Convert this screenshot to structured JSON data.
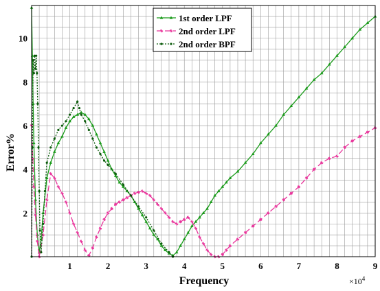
{
  "chart_data": {
    "type": "line",
    "xlabel": "Frequency",
    "ylabel": "Error%",
    "x_multiplier": "×10",
    "x_multiplier_exp": "4",
    "xlim": [
      0,
      9
    ],
    "ylim": [
      0,
      11.5
    ],
    "xticks": [
      1,
      2,
      3,
      4,
      5,
      6,
      7,
      8,
      9
    ],
    "yticks": [
      2,
      4,
      6,
      8,
      10
    ],
    "grid": true,
    "legend_position": "top-center",
    "series": [
      {
        "name": "1st order LPF",
        "color": "#1a9a1a",
        "dash": "none",
        "marker": "triangle",
        "x": [
          0.0,
          0.02,
          0.04,
          0.06,
          0.1,
          0.15,
          0.2,
          0.25,
          0.3,
          0.4,
          0.5,
          0.6,
          0.7,
          0.8,
          0.9,
          1.0,
          1.1,
          1.2,
          1.3,
          1.4,
          1.5,
          1.6,
          1.7,
          1.8,
          1.9,
          2.0,
          2.1,
          2.2,
          2.3,
          2.4,
          2.5,
          2.6,
          2.7,
          2.8,
          2.9,
          3.0,
          3.1,
          3.2,
          3.3,
          3.4,
          3.5,
          3.6,
          3.7,
          3.8,
          3.9,
          4.0,
          4.1,
          4.2,
          4.3,
          4.4,
          4.5,
          4.6,
          4.7,
          4.8,
          4.9,
          5.0,
          5.1,
          5.2,
          5.4,
          5.6,
          5.8,
          6.0,
          6.2,
          6.4,
          6.6,
          6.8,
          7.0,
          7.2,
          7.4,
          7.6,
          7.8,
          8.0,
          8.2,
          8.4,
          8.6,
          8.8,
          9.0
        ],
        "y": [
          11.4,
          9.2,
          7.0,
          5.2,
          2.6,
          1.0,
          0.2,
          0.8,
          2.0,
          3.6,
          4.3,
          4.8,
          5.2,
          5.5,
          5.9,
          6.2,
          6.4,
          6.5,
          6.6,
          6.5,
          6.3,
          6.0,
          5.6,
          5.2,
          4.8,
          4.4,
          4.0,
          3.7,
          3.4,
          3.2,
          3.0,
          2.8,
          2.5,
          2.2,
          1.9,
          1.6,
          1.3,
          1.0,
          0.8,
          0.5,
          0.3,
          0.15,
          0.05,
          0.2,
          0.5,
          0.8,
          1.1,
          1.4,
          1.6,
          1.8,
          2.0,
          2.2,
          2.5,
          2.8,
          3.0,
          3.2,
          3.4,
          3.6,
          3.9,
          4.3,
          4.7,
          5.2,
          5.6,
          6.0,
          6.5,
          6.9,
          7.3,
          7.7,
          8.1,
          8.4,
          8.8,
          9.2,
          9.6,
          10.0,
          10.4,
          10.7,
          11.0
        ]
      },
      {
        "name": "2nd order LPF",
        "color": "#e8339a",
        "dash": "8,4",
        "marker": "star",
        "x": [
          0.0,
          0.03,
          0.06,
          0.1,
          0.15,
          0.2,
          0.3,
          0.4,
          0.5,
          0.6,
          0.7,
          0.8,
          0.9,
          1.0,
          1.1,
          1.2,
          1.3,
          1.4,
          1.5,
          1.6,
          1.7,
          1.8,
          1.9,
          2.0,
          2.1,
          2.2,
          2.3,
          2.4,
          2.5,
          2.6,
          2.7,
          2.8,
          2.9,
          3.0,
          3.1,
          3.2,
          3.3,
          3.4,
          3.5,
          3.6,
          3.7,
          3.8,
          3.9,
          4.0,
          4.1,
          4.2,
          4.3,
          4.4,
          4.5,
          4.6,
          4.7,
          4.8,
          4.9,
          5.0,
          5.1,
          5.2,
          5.4,
          5.6,
          5.8,
          6.0,
          6.2,
          6.4,
          6.6,
          6.8,
          7.0,
          7.2,
          7.4,
          7.6,
          7.8,
          8.0,
          8.2,
          8.4,
          8.6,
          8.8,
          9.0
        ],
        "y": [
          6.0,
          4.5,
          3.2,
          1.9,
          0.7,
          0.0,
          1.0,
          2.6,
          3.8,
          3.6,
          3.2,
          2.9,
          2.5,
          2.0,
          1.5,
          1.1,
          0.7,
          0.3,
          0.05,
          0.4,
          0.9,
          1.3,
          1.7,
          2.0,
          2.2,
          2.4,
          2.5,
          2.6,
          2.7,
          2.8,
          2.9,
          2.95,
          3.0,
          2.9,
          2.8,
          2.6,
          2.4,
          2.2,
          2.0,
          1.8,
          1.6,
          1.5,
          1.6,
          1.7,
          1.8,
          1.6,
          1.3,
          0.9,
          0.6,
          0.3,
          0.1,
          0.0,
          0.0,
          0.1,
          0.3,
          0.5,
          0.8,
          1.1,
          1.4,
          1.7,
          2.0,
          2.3,
          2.6,
          2.9,
          3.2,
          3.6,
          4.0,
          4.3,
          4.5,
          4.6,
          5.0,
          5.3,
          5.5,
          5.7,
          5.9
        ]
      },
      {
        "name": "2nd order BPF",
        "color": "#0a5a0a",
        "dash": "2,2",
        "marker": "dot",
        "x": [
          0.0,
          0.02,
          0.04,
          0.06,
          0.08,
          0.1,
          0.12,
          0.14,
          0.16,
          0.18,
          0.2,
          0.22,
          0.25,
          0.3,
          0.35,
          0.4,
          0.5,
          0.6,
          0.7,
          0.8,
          0.9,
          1.0,
          1.1,
          1.2,
          1.25,
          1.3,
          1.4,
          1.5,
          1.6,
          1.7,
          1.8,
          1.9,
          2.0,
          2.2,
          2.4,
          2.6,
          2.8,
          3.0,
          3.2,
          3.4,
          3.6,
          3.7
        ],
        "y": [
          0.0,
          5.0,
          9.0,
          8.4,
          9.2,
          8.6,
          9.2,
          8.4,
          7.0,
          5.0,
          3.0,
          1.2,
          0.2,
          1.5,
          3.0,
          4.3,
          5.0,
          5.4,
          5.8,
          6.0,
          6.2,
          6.5,
          6.8,
          7.1,
          6.8,
          6.5,
          6.2,
          5.8,
          5.4,
          5.0,
          4.7,
          4.4,
          4.2,
          3.8,
          3.3,
          2.8,
          2.3,
          1.8,
          1.2,
          0.6,
          0.2,
          0.0
        ]
      }
    ]
  }
}
